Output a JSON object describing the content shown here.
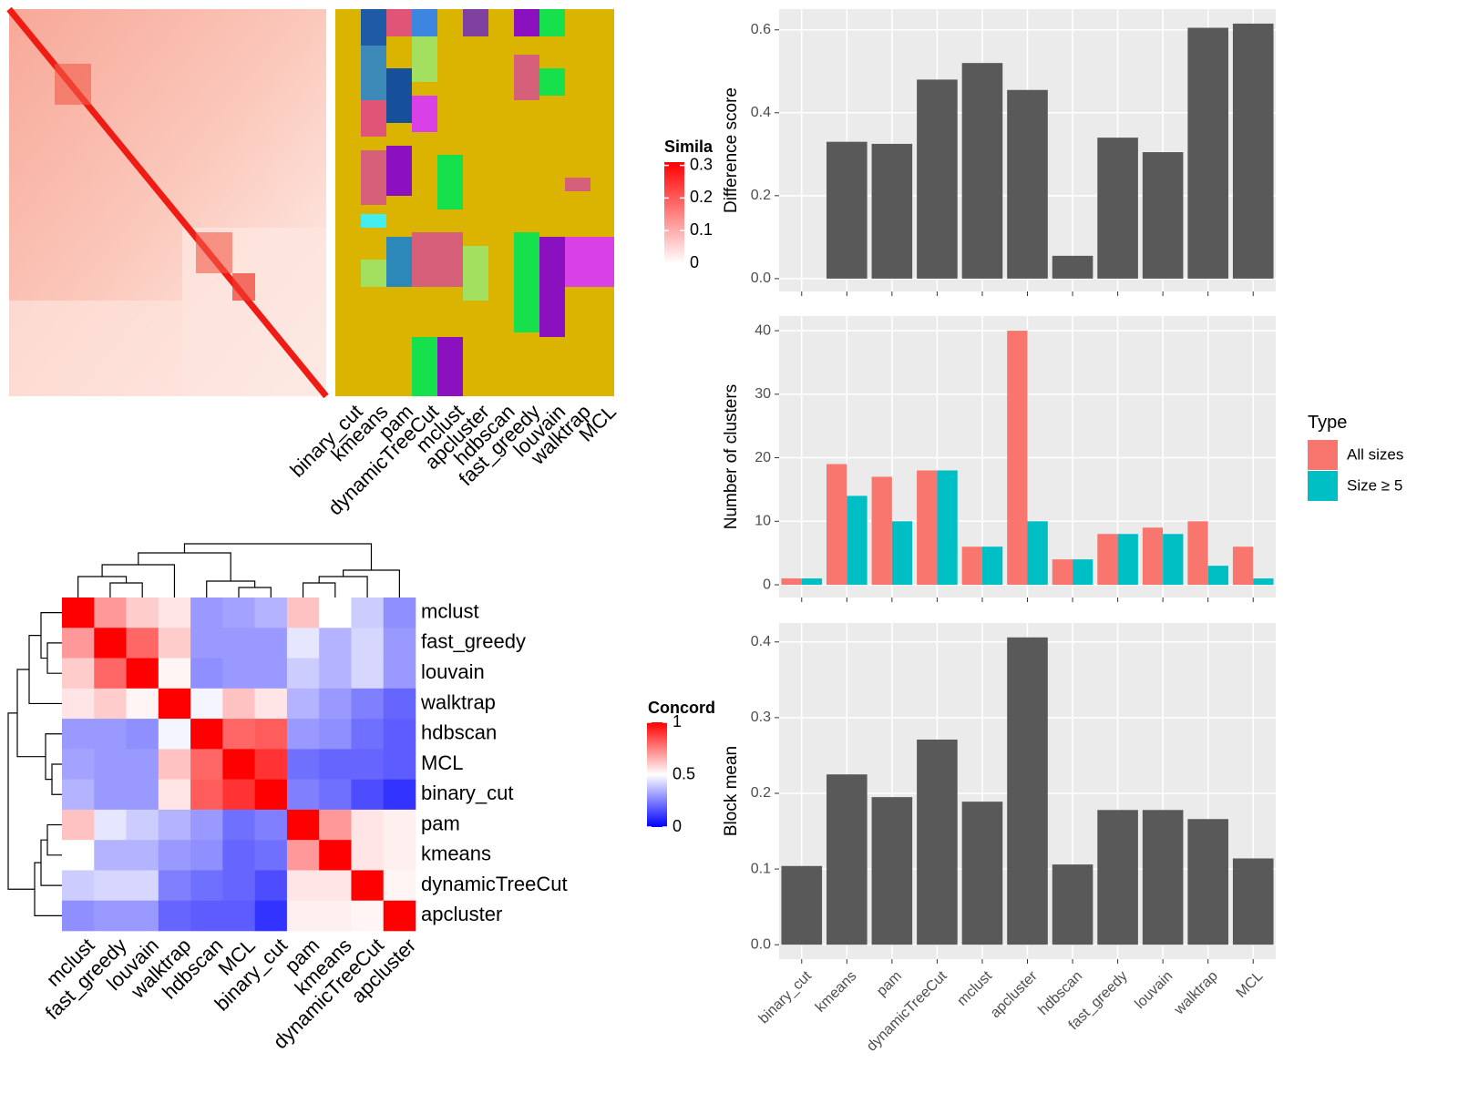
{
  "chart_data": [
    {
      "type": "heatmap-annotated",
      "categories": [
        "binary_cut",
        "kmeans",
        "pam",
        "dynamicTreeCut",
        "mclust",
        "apcluster",
        "hdbscan",
        "fast_greedy",
        "louvain",
        "walktrap",
        "MCL"
      ],
      "legend_title": "Simila",
      "legend_lim": [
        0,
        0.31
      ],
      "legend_ticks": [
        0,
        0.1,
        0.2,
        0.3
      ],
      "colormap": [
        "#FFFFFF",
        "#FF0000"
      ]
    },
    {
      "type": "heatmap",
      "categories": [
        "mclust",
        "fast_greedy",
        "louvain",
        "walktrap",
        "hdbscan",
        "MCL",
        "binary_cut",
        "pam",
        "kmeans",
        "dynamicTreeCut",
        "apcluster"
      ],
      "values": [
        [
          1,
          0.7,
          0.6,
          0.55,
          0.3,
          0.32,
          0.35,
          0.62,
          0.5,
          0.4,
          0.28
        ],
        [
          0.7,
          1,
          0.8,
          0.6,
          0.3,
          0.3,
          0.3,
          0.45,
          0.35,
          0.42,
          0.3
        ],
        [
          0.6,
          0.8,
          1,
          0.52,
          0.28,
          0.3,
          0.3,
          0.4,
          0.35,
          0.42,
          0.3
        ],
        [
          0.55,
          0.6,
          0.52,
          1,
          0.48,
          0.62,
          0.55,
          0.35,
          0.3,
          0.25,
          0.2
        ],
        [
          0.3,
          0.3,
          0.28,
          0.48,
          1,
          0.8,
          0.82,
          0.3,
          0.28,
          0.22,
          0.18
        ],
        [
          0.32,
          0.3,
          0.3,
          0.62,
          0.8,
          1,
          0.9,
          0.22,
          0.2,
          0.2,
          0.18
        ],
        [
          0.35,
          0.3,
          0.3,
          0.55,
          0.82,
          0.9,
          1,
          0.25,
          0.22,
          0.15,
          0.1
        ],
        [
          0.62,
          0.45,
          0.4,
          0.35,
          0.3,
          0.22,
          0.25,
          1,
          0.7,
          0.55,
          0.53
        ],
        [
          0.5,
          0.35,
          0.35,
          0.3,
          0.28,
          0.2,
          0.22,
          0.7,
          1,
          0.55,
          0.53
        ],
        [
          0.4,
          0.42,
          0.42,
          0.25,
          0.22,
          0.2,
          0.15,
          0.55,
          0.55,
          1,
          0.52
        ],
        [
          0.28,
          0.3,
          0.3,
          0.2,
          0.18,
          0.18,
          0.1,
          0.53,
          0.53,
          0.52,
          1
        ]
      ],
      "legend_title": "Concord",
      "legend_lim": [
        0,
        1
      ],
      "legend_ticks": [
        0,
        0.5,
        1
      ],
      "colormap": [
        "#0000FF",
        "#FFFFFF",
        "#FF0000"
      ]
    },
    {
      "type": "bar",
      "ylabel": "Difference score",
      "values": [
        0,
        0.33,
        0.325,
        0.48,
        0.52,
        0.455,
        0.055,
        0.34,
        0.305,
        0.605,
        0.615
      ],
      "color": "#595959",
      "ylim": [
        -0.031,
        0.65
      ],
      "yticks": [
        {
          "value": 0,
          "label": "0.0"
        },
        {
          "value": 0.2,
          "label": "0.2"
        },
        {
          "value": 0.4,
          "label": "0.4"
        },
        {
          "value": 0.6,
          "label": "0.6"
        }
      ]
    },
    {
      "type": "grouped-bar",
      "ylabel": "Number of clusters",
      "legend_title": "Type",
      "series": [
        {
          "name": "All sizes",
          "color": "#F8766D",
          "values": [
            1,
            19,
            17,
            18,
            6,
            40,
            4,
            8,
            9,
            10,
            6
          ]
        },
        {
          "name": "Size ≥ 5",
          "color": "#00BFC4",
          "values": [
            1,
            14,
            10,
            18,
            6,
            10,
            4,
            8,
            8,
            3,
            1
          ]
        }
      ],
      "ylim": [
        -2,
        42.3
      ],
      "yticks": [
        0,
        10,
        20,
        30,
        40
      ]
    },
    {
      "type": "bar",
      "ylabel": "Block mean",
      "categories": [
        "binary_cut",
        "kmeans",
        "pam",
        "dynamicTreeCut",
        "mclust",
        "apcluster",
        "hdbscan",
        "fast_greedy",
        "louvain",
        "walktrap",
        "MCL"
      ],
      "values": [
        0.104,
        0.225,
        0.195,
        0.271,
        0.189,
        0.406,
        0.106,
        0.178,
        0.178,
        0.166,
        0.114
      ],
      "color": "#595959",
      "ylim": [
        -0.019,
        0.425
      ],
      "yticks": [
        {
          "value": 0,
          "label": "0.0"
        },
        {
          "value": 0.1,
          "label": "0.1"
        },
        {
          "value": 0.2,
          "label": "0.2"
        },
        {
          "value": 0.3,
          "label": "0.3"
        },
        {
          "value": 0.4,
          "label": "0.4"
        }
      ]
    }
  ]
}
